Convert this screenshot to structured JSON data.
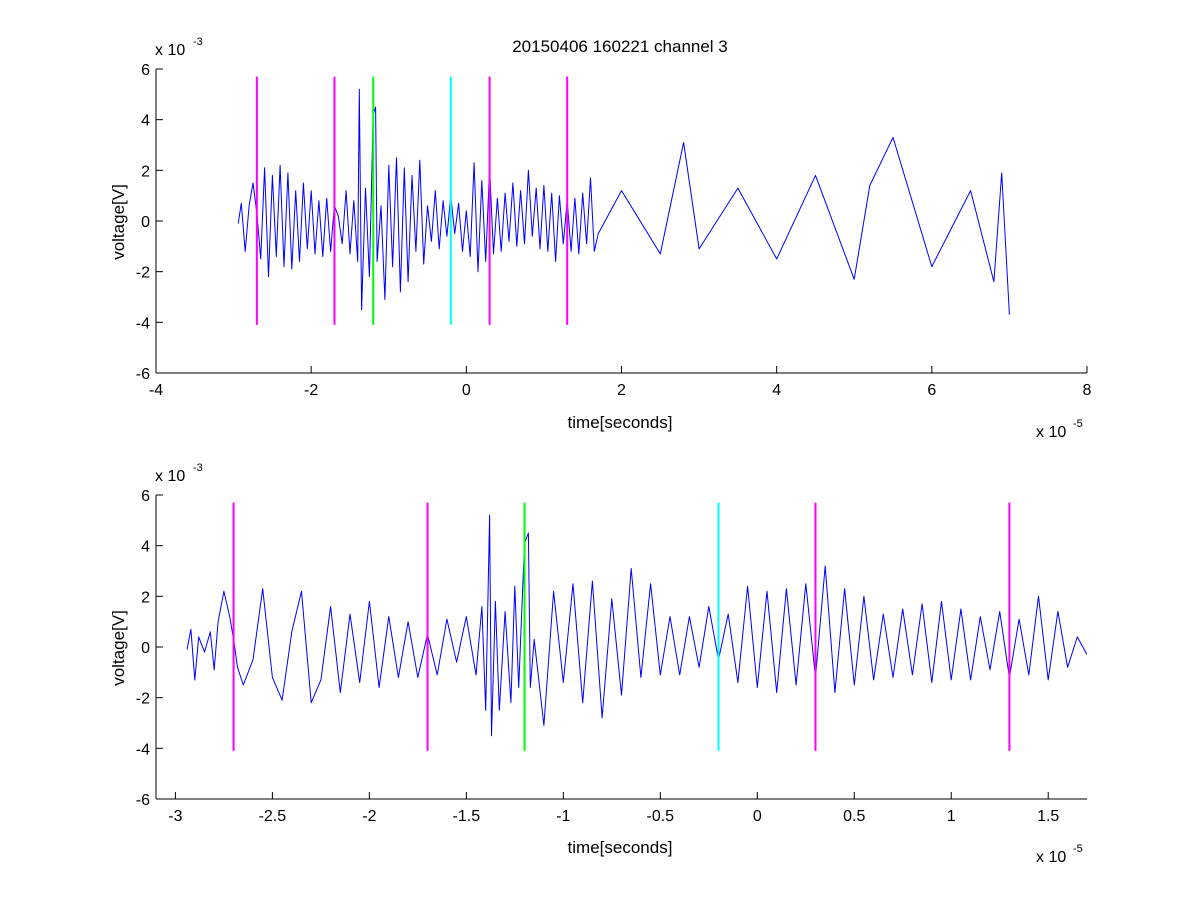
{
  "chart_data": [
    {
      "type": "line",
      "title": "20150406 160221 channel 3",
      "xlabel": "time[seconds]",
      "ylabel": "voltage[V]",
      "xlim": [
        -4e-05,
        8e-05
      ],
      "ylim": [
        -0.006,
        0.006
      ],
      "x_ticks": [
        -4,
        -2,
        0,
        2,
        4,
        6,
        8
      ],
      "x_tick_labels": [
        "-4",
        "-2",
        "0",
        "2",
        "4",
        "6",
        "8"
      ],
      "x_multiplier": {
        "base": "x 10",
        "exponent": "-5"
      },
      "y_ticks": [
        -6,
        -4,
        -2,
        0,
        2,
        4,
        6
      ],
      "y_tick_labels": [
        "-6",
        "-4",
        "-2",
        "0",
        "2",
        "4",
        "6"
      ],
      "y_multiplier": {
        "base": "x 10",
        "exponent": "-3"
      },
      "series": [
        {
          "color": "#0000ff",
          "x": [
            -2.94e-05,
            -2.9e-05,
            -2.85e-05,
            -2.8e-05,
            -2.75e-05,
            -2.7e-05,
            -2.65e-05,
            -2.6e-05,
            -2.55e-05,
            -2.5e-05,
            -2.45e-05,
            -2.4e-05,
            -2.35e-05,
            -2.3e-05,
            -2.25e-05,
            -2.2e-05,
            -2.15e-05,
            -2.1e-05,
            -2.05e-05,
            -2e-05,
            -1.95e-05,
            -1.9e-05,
            -1.85e-05,
            -1.8e-05,
            -1.75e-05,
            -1.7e-05,
            -1.65e-05,
            -1.6e-05,
            -1.55e-05,
            -1.5e-05,
            -1.45e-05,
            -1.4e-05,
            -1.38e-05,
            -1.35e-05,
            -1.3e-05,
            -1.25e-05,
            -1.2e-05,
            -1.17e-05,
            -1.15e-05,
            -1.1e-05,
            -1.05e-05,
            -1e-05,
            -9.5e-06,
            -9e-06,
            -8.5e-06,
            -8e-06,
            -7.5e-06,
            -7e-06,
            -6.5e-06,
            -6e-06,
            -5.5e-06,
            -5e-06,
            -4.5e-06,
            -4e-06,
            -3.5e-06,
            -3e-06,
            -2.5e-06,
            -2e-06,
            -1.5e-06,
            -1e-06,
            -5e-07,
            0,
            5e-07,
            1e-06,
            1.5e-06,
            2e-06,
            2.5e-06,
            3e-06,
            3.5e-06,
            4e-06,
            4.5e-06,
            5e-06,
            5.5e-06,
            6e-06,
            6.5e-06,
            7e-06,
            7.5e-06,
            8e-06,
            8.5e-06,
            9e-06,
            9.5e-06,
            1e-05,
            1.05e-05,
            1.1e-05,
            1.15e-05,
            1.2e-05,
            1.25e-05,
            1.3e-05,
            1.35e-05,
            1.4e-05,
            1.45e-05,
            1.5e-05,
            1.55e-05,
            1.6e-05,
            1.65e-05,
            1.7e-05,
            2e-05,
            2.5e-05,
            2.8e-05,
            3e-05,
            3.5e-05,
            4e-05,
            4.5e-05,
            5e-05,
            5.2e-05,
            5.5e-05,
            6e-05,
            6.5e-05,
            6.8e-05,
            6.9e-05,
            7e-05
          ],
          "y": [
            -0.0001,
            0.0007,
            -0.0012,
            0.0006,
            0.0015,
            0.0003,
            -0.0015,
            0.0021,
            -0.0022,
            0.0018,
            -0.0014,
            0.0022,
            -0.0018,
            0.0019,
            -0.0019,
            0.0012,
            -0.0016,
            0.0015,
            -0.0011,
            0.0012,
            -0.0013,
            0.0008,
            -0.0014,
            0.0009,
            -0.0012,
            0.0006,
            0.0002,
            -0.0009,
            0.0012,
            -0.0013,
            0.0008,
            -0.0016,
            0.0052,
            -0.0035,
            0.0013,
            -0.0022,
            0.0042,
            0.0045,
            -0.0016,
            0.0006,
            -0.0031,
            0.0022,
            -0.0018,
            0.0025,
            -0.0028,
            0.0021,
            -0.0024,
            0.0018,
            -0.0012,
            0.0024,
            -0.0017,
            0.0006,
            -0.0008,
            0.0012,
            -0.0011,
            0.0008,
            -0.0006,
            0.001,
            -0.0005,
            0.0007,
            -0.0012,
            0.0004,
            -0.0014,
            0.0023,
            -0.002,
            0.0016,
            -0.0016,
            0.0021,
            -0.0013,
            0.0009,
            -0.0012,
            0.0011,
            -0.0008,
            0.0015,
            -0.001,
            0.0012,
            -0.0009,
            0.002,
            -0.0006,
            0.0013,
            -0.0011,
            0.0014,
            -0.0012,
            0.0011,
            -0.0016,
            0.001,
            -0.0009,
            0.0008,
            -0.0012,
            0.0009,
            -0.0013,
            0.0011,
            -0.0009,
            0.0017,
            -0.0012,
            -0.0005,
            0.0012,
            -0.0013,
            0.0031,
            -0.0011,
            0.0013,
            -0.0015,
            0.0018,
            -0.0023,
            0.0014,
            0.0033,
            -0.0018,
            0.0012,
            -0.0024,
            0.0019,
            -0.0037
          ]
        }
      ],
      "vertical_markers": [
        {
          "x": -2.7e-05,
          "color": "#ff00ff"
        },
        {
          "x": -1.7e-05,
          "color": "#ff00ff"
        },
        {
          "x": -1.2e-05,
          "color": "#00ff00"
        },
        {
          "x": -2e-06,
          "color": "#00ffff"
        },
        {
          "x": 3e-06,
          "color": "#ff00ff"
        },
        {
          "x": 1.3e-05,
          "color": "#ff00ff"
        }
      ],
      "marker_ylim": [
        -0.0041,
        0.0057
      ]
    },
    {
      "type": "line",
      "title": "",
      "xlabel": "time[seconds]",
      "ylabel": "voltage[V]",
      "xlim": [
        -3.1e-05,
        1.7e-05
      ],
      "ylim": [
        -0.006,
        0.006
      ],
      "x_ticks": [
        -3,
        -2.5,
        -2,
        -1.5,
        -1,
        -0.5,
        0,
        0.5,
        1,
        1.5
      ],
      "x_tick_labels": [
        "-3",
        "-2.5",
        "-2",
        "-1.5",
        "-1",
        "-0.5",
        "0",
        "0.5",
        "1",
        "1.5"
      ],
      "x_multiplier": {
        "base": "x 10",
        "exponent": "-5"
      },
      "y_ticks": [
        -6,
        -4,
        -2,
        0,
        2,
        4,
        6
      ],
      "y_tick_labels": [
        "-6",
        "-4",
        "-2",
        "0",
        "2",
        "4",
        "6"
      ],
      "y_multiplier": {
        "base": "x 10",
        "exponent": "-3"
      },
      "series": [
        {
          "color": "#0000ff",
          "x": [
            -2.94e-05,
            -2.92e-05,
            -2.9e-05,
            -2.88e-05,
            -2.85e-05,
            -2.82e-05,
            -2.8e-05,
            -2.78e-05,
            -2.75e-05,
            -2.72e-05,
            -2.7e-05,
            -2.68e-05,
            -2.65e-05,
            -2.6e-05,
            -2.55e-05,
            -2.5e-05,
            -2.45e-05,
            -2.4e-05,
            -2.35e-05,
            -2.3e-05,
            -2.25e-05,
            -2.2e-05,
            -2.15e-05,
            -2.1e-05,
            -2.05e-05,
            -2e-05,
            -1.95e-05,
            -1.9e-05,
            -1.85e-05,
            -1.8e-05,
            -1.75e-05,
            -1.7e-05,
            -1.65e-05,
            -1.6e-05,
            -1.55e-05,
            -1.5e-05,
            -1.45e-05,
            -1.42e-05,
            -1.4e-05,
            -1.38e-05,
            -1.37e-05,
            -1.35e-05,
            -1.33e-05,
            -1.3e-05,
            -1.27e-05,
            -1.25e-05,
            -1.23e-05,
            -1.2e-05,
            -1.18e-05,
            -1.17e-05,
            -1.15e-05,
            -1.1e-05,
            -1.05e-05,
            -1e-05,
            -9.5e-06,
            -9e-06,
            -8.5e-06,
            -8e-06,
            -7.5e-06,
            -7e-06,
            -6.5e-06,
            -6e-06,
            -5.5e-06,
            -5e-06,
            -4.5e-06,
            -4e-06,
            -3.5e-06,
            -3e-06,
            -2.5e-06,
            -2e-06,
            -1.5e-06,
            -1e-06,
            -5e-07,
            0,
            5e-07,
            1e-06,
            1.5e-06,
            2e-06,
            2.5e-06,
            3e-06,
            3.5e-06,
            4e-06,
            4.5e-06,
            5e-06,
            5.5e-06,
            6e-06,
            6.5e-06,
            7e-06,
            7.5e-06,
            8e-06,
            8.5e-06,
            9e-06,
            9.5e-06,
            1e-05,
            1.05e-05,
            1.1e-05,
            1.15e-05,
            1.2e-05,
            1.25e-05,
            1.3e-05,
            1.35e-05,
            1.4e-05,
            1.45e-05,
            1.5e-05,
            1.55e-05,
            1.6e-05,
            1.65e-05,
            1.7e-05
          ],
          "y": [
            -0.0001,
            0.0007,
            -0.0013,
            0.0004,
            -0.0002,
            0.0006,
            -0.0009,
            0.001,
            0.0022,
            0.0012,
            0.0003,
            -0.0008,
            -0.0015,
            -0.0005,
            0.0023,
            -0.0012,
            -0.0021,
            0.0006,
            0.0022,
            -0.0022,
            -0.0013,
            0.0016,
            -0.0018,
            0.0013,
            -0.0014,
            0.0018,
            -0.0016,
            0.0012,
            -0.0012,
            0.001,
            -0.0012,
            0.0005,
            -0.0011,
            0.0011,
            -0.0006,
            0.0012,
            -0.0011,
            0.0016,
            -0.0025,
            0.0052,
            -0.0035,
            0.0018,
            -0.0025,
            0.0014,
            -0.0022,
            0.0024,
            -0.0016,
            0.0041,
            0.0045,
            -0.0016,
            0.0003,
            -0.0031,
            0.0022,
            -0.0014,
            0.0025,
            -0.0022,
            0.0026,
            -0.0028,
            0.0019,
            -0.0019,
            0.0031,
            -0.0012,
            0.0025,
            -0.0011,
            0.0012,
            -0.0011,
            0.0012,
            -0.0008,
            0.0016,
            -0.0005,
            0.0013,
            -0.0014,
            0.0024,
            -0.0016,
            0.0022,
            -0.0018,
            0.0023,
            -0.0015,
            0.0025,
            -0.0012,
            0.0032,
            -0.0018,
            0.0023,
            -0.0015,
            0.002,
            -0.0013,
            0.0013,
            -0.0012,
            0.0015,
            -0.0011,
            0.0017,
            -0.0014,
            0.0018,
            -0.0013,
            0.0015,
            -0.0013,
            0.0012,
            -0.0009,
            0.0014,
            -0.0012,
            0.0011,
            -0.0011,
            0.002,
            -0.0013,
            0.0014,
            -0.0008,
            0.0004,
            -0.0003
          ]
        }
      ],
      "vertical_markers": [
        {
          "x": -2.7e-05,
          "color": "#ff00ff"
        },
        {
          "x": -1.7e-05,
          "color": "#ff00ff"
        },
        {
          "x": -1.2e-05,
          "color": "#00ff00"
        },
        {
          "x": -2e-06,
          "color": "#00ffff"
        },
        {
          "x": 3e-06,
          "color": "#ff00ff"
        },
        {
          "x": 1.3e-05,
          "color": "#ff00ff"
        }
      ],
      "marker_ylim": [
        -0.0041,
        0.0057
      ]
    }
  ]
}
